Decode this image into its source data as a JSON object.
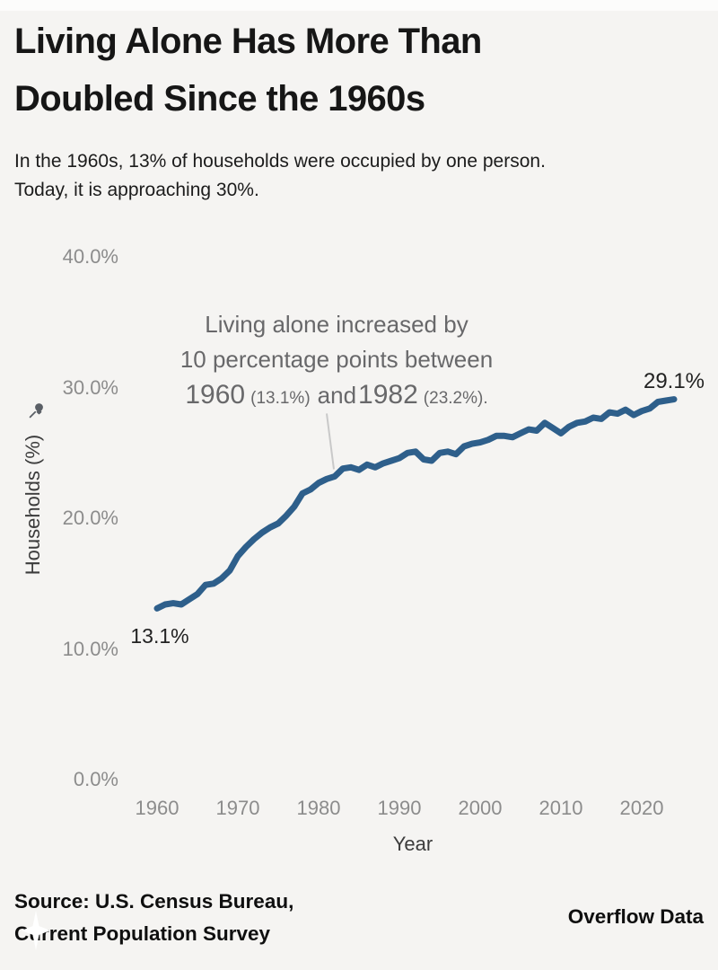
{
  "header": {
    "title_lines": [
      "Living Alone Has More Than",
      "Doubled Since the 1960s"
    ],
    "subtitle_lines": [
      "In the 1960s, 13% of households were occupied by one person.",
      "Today, it is approaching 30%."
    ]
  },
  "chart_data": {
    "type": "line",
    "title": "Living Alone Has More Than Doubled Since the 1960s",
    "subtitle": "In the 1960s, 13% of households were occupied by one person. Today, it is approaching 30%.",
    "xlabel": "Year",
    "ylabel": "Households (%)",
    "xlim": [
      1960,
      2024
    ],
    "ylim": [
      0,
      40
    ],
    "grid": false,
    "legend": false,
    "line_color": "#2e5f8b",
    "x": [
      1960,
      1961,
      1962,
      1963,
      1964,
      1965,
      1966,
      1967,
      1968,
      1969,
      1970,
      1971,
      1972,
      1973,
      1974,
      1975,
      1976,
      1977,
      1978,
      1979,
      1980,
      1981,
      1982,
      1983,
      1984,
      1985,
      1986,
      1987,
      1988,
      1989,
      1990,
      1991,
      1992,
      1993,
      1994,
      1995,
      1996,
      1997,
      1998,
      1999,
      2000,
      2001,
      2002,
      2003,
      2004,
      2005,
      2006,
      2007,
      2008,
      2009,
      2010,
      2011,
      2012,
      2013,
      2014,
      2015,
      2016,
      2017,
      2018,
      2019,
      2020,
      2021,
      2022,
      2023,
      2024
    ],
    "values": [
      13.1,
      13.4,
      13.5,
      13.4,
      13.8,
      14.2,
      14.9,
      15.0,
      15.4,
      16.0,
      17.1,
      17.8,
      18.4,
      18.9,
      19.3,
      19.6,
      20.2,
      20.9,
      21.9,
      22.2,
      22.7,
      23.0,
      23.2,
      23.8,
      23.9,
      23.7,
      24.1,
      23.9,
      24.2,
      24.4,
      24.6,
      25.0,
      25.1,
      24.5,
      24.4,
      25.0,
      25.1,
      24.9,
      25.5,
      25.7,
      25.8,
      26.0,
      26.3,
      26.3,
      26.2,
      26.5,
      26.8,
      26.7,
      27.3,
      26.9,
      26.5,
      27.0,
      27.3,
      27.4,
      27.7,
      27.6,
      28.1,
      28.0,
      28.3,
      27.9,
      28.2,
      28.4,
      28.9,
      29.0,
      29.1
    ],
    "y_ticks": [
      {
        "label": "40.0%",
        "value": 40
      },
      {
        "label": "30.0%",
        "value": 30
      },
      {
        "label": "20.0%",
        "value": 20
      },
      {
        "label": "10.0%",
        "value": 10
      },
      {
        "label": "0.0%",
        "value": 0
      }
    ],
    "x_ticks": [
      {
        "label": "1960",
        "value": 1960
      },
      {
        "label": "1970",
        "value": 1970
      },
      {
        "label": "1980",
        "value": 1980
      },
      {
        "label": "1990",
        "value": 1990
      },
      {
        "label": "2000",
        "value": 2000
      },
      {
        "label": "2010",
        "value": 2010
      },
      {
        "label": "2020",
        "value": 2020
      }
    ],
    "point_labels": {
      "first": "13.1%",
      "last": "29.1%"
    },
    "annotation": {
      "line1": "Living alone increased by",
      "line2": "10 percentage points between",
      "year1": "1960",
      "pct1": "(13.1%)",
      "mid": "and",
      "year2": "1982",
      "pct2": "(23.2%).",
      "anchor_year": 1982,
      "anchor_value": 23.2
    }
  },
  "icons": {
    "axis_pin": "pushpin",
    "watermark": "four-point-star"
  },
  "colors": {
    "background": "#f5f4f2",
    "line": "#2e5f8b",
    "tick_text": "#8c8c8c",
    "axis_title_text": "#3c3c3c",
    "annotation_text": "#68686a",
    "title_text": "#161616",
    "footer_text": "#0f0f0f"
  },
  "footer": {
    "source_lines": [
      "Source: U.S. Census Bureau,",
      "Current Population Survey"
    ],
    "brand": "Overflow Data"
  }
}
